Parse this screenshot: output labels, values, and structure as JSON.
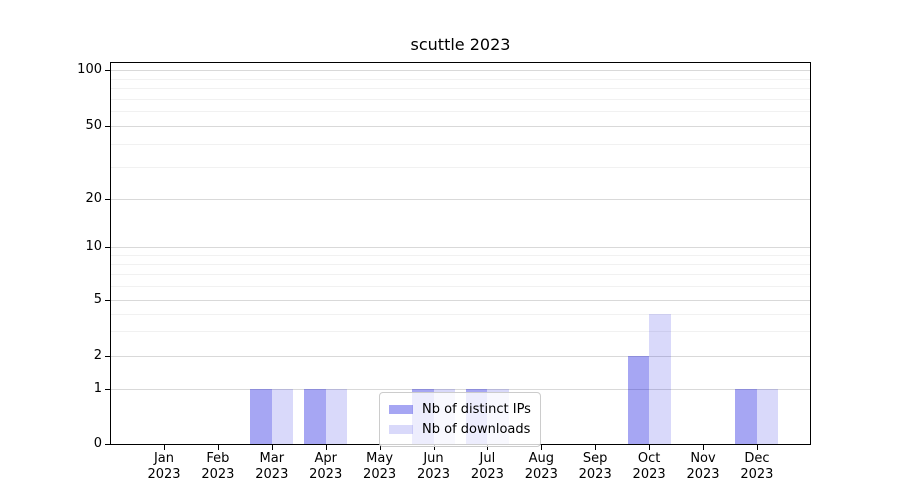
{
  "chart_data": {
    "type": "bar",
    "title": "scuttle 2023",
    "categories": [
      "Jan",
      "Feb",
      "Mar",
      "Apr",
      "May",
      "Jun",
      "Jul",
      "Aug",
      "Sep",
      "Oct",
      "Nov",
      "Dec"
    ],
    "year_label": "2023",
    "series": [
      {
        "name": "Nb of distinct IPs",
        "color": "rgba(0,0,220,0.35)",
        "values": [
          0,
          0,
          1,
          1,
          0,
          1,
          1,
          0,
          0,
          2,
          0,
          1
        ]
      },
      {
        "name": "Nb of downloads",
        "color": "rgba(0,0,220,0.15)",
        "values": [
          0,
          0,
          1,
          1,
          0,
          1,
          1,
          0,
          0,
          4,
          0,
          1
        ]
      }
    ],
    "yticks": [
      0,
      1,
      2,
      5,
      10,
      20,
      50,
      100
    ],
    "yscale": "symlog",
    "ylim": [
      0,
      115
    ],
    "grid": true,
    "legend_position": "lower center",
    "colors": {
      "major_grid": "#d9d9d9",
      "minor_grid": "#f1f1f1",
      "spine": "#000000",
      "background": "#ffffff"
    }
  }
}
